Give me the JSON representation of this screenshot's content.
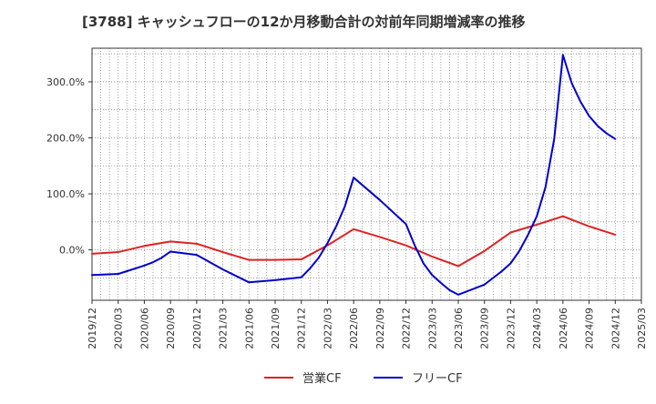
{
  "chart_data": {
    "type": "line",
    "title": "[3788]  キャッシュフローの12か月移動合計の対前年同期増減率の推移",
    "xlabel": "",
    "ylabel": "",
    "x_ticks": [
      "2019/12",
      "2020/03",
      "2020/06",
      "2020/09",
      "2020/12",
      "2021/03",
      "2021/06",
      "2021/09",
      "2021/12",
      "2022/03",
      "2022/06",
      "2022/09",
      "2022/12",
      "2023/03",
      "2023/06",
      "2023/09",
      "2023/12",
      "2024/03",
      "2024/06",
      "2024/09",
      "2024/12",
      "2025/03"
    ],
    "y_ticks": [
      {
        "value": 0,
        "label": "0.0%"
      },
      {
        "value": 100,
        "label": "100.0%"
      },
      {
        "value": 200,
        "label": "200.0%"
      },
      {
        "value": 300,
        "label": "300.0%"
      }
    ],
    "ylim": [
      -90,
      360
    ],
    "grid": true,
    "legend_position": "bottom",
    "series": [
      {
        "name": "営業CF",
        "color": "#dd2222",
        "points": [
          [
            "2019/12",
            -7
          ],
          [
            "2020/03",
            -4
          ],
          [
            "2020/06",
            7
          ],
          [
            "2020/09",
            15
          ],
          [
            "2020/12",
            11
          ],
          [
            "2021/03",
            -4
          ],
          [
            "2021/06",
            -18
          ],
          [
            "2021/09",
            -18
          ],
          [
            "2021/12",
            -17
          ],
          [
            "2022/03",
            8
          ],
          [
            "2022/06",
            37
          ],
          [
            "2022/09",
            23
          ],
          [
            "2022/12",
            8
          ],
          [
            "2023/03",
            -12
          ],
          [
            "2023/06",
            -29
          ],
          [
            "2023/09",
            -2
          ],
          [
            "2023/12",
            31
          ],
          [
            "2024/03",
            45
          ],
          [
            "2024/06",
            60
          ],
          [
            "2024/09",
            42
          ],
          [
            "2024/12",
            27
          ]
        ]
      },
      {
        "name": "フリーCF",
        "color": "#0000cc",
        "points": [
          [
            "2019/12",
            -45
          ],
          [
            "2020/03",
            -43
          ],
          [
            "2020/04",
            -38
          ],
          [
            "2020/05",
            -33
          ],
          [
            "2020/06",
            -28
          ],
          [
            "2020/07",
            -22
          ],
          [
            "2020/08",
            -14
          ],
          [
            "2020/09",
            -3
          ],
          [
            "2020/12",
            -9
          ],
          [
            "2021/03",
            -35
          ],
          [
            "2021/06",
            -58
          ],
          [
            "2021/09",
            -54
          ],
          [
            "2021/12",
            -49
          ],
          [
            "2022/01",
            -33
          ],
          [
            "2022/02",
            -14
          ],
          [
            "2022/03",
            12
          ],
          [
            "2022/04",
            42
          ],
          [
            "2022/05",
            78
          ],
          [
            "2022/06",
            129
          ],
          [
            "2022/09",
            89
          ],
          [
            "2022/12",
            46
          ],
          [
            "2023/01",
            8
          ],
          [
            "2023/02",
            -24
          ],
          [
            "2023/03",
            -45
          ],
          [
            "2023/04",
            -59
          ],
          [
            "2023/05",
            -72
          ],
          [
            "2023/06",
            -80
          ],
          [
            "2023/09",
            -62
          ],
          [
            "2023/10",
            -50
          ],
          [
            "2023/11",
            -38
          ],
          [
            "2023/12",
            -24
          ],
          [
            "2024/01",
            -2
          ],
          [
            "2024/02",
            27
          ],
          [
            "2024/03",
            60
          ],
          [
            "2024/04",
            112
          ],
          [
            "2024/05",
            198
          ],
          [
            "2024/06",
            348
          ],
          [
            "2024/07",
            298
          ],
          [
            "2024/08",
            265
          ],
          [
            "2024/09",
            239
          ],
          [
            "2024/10",
            221
          ],
          [
            "2024/11",
            208
          ],
          [
            "2024/12",
            198
          ]
        ]
      }
    ]
  }
}
